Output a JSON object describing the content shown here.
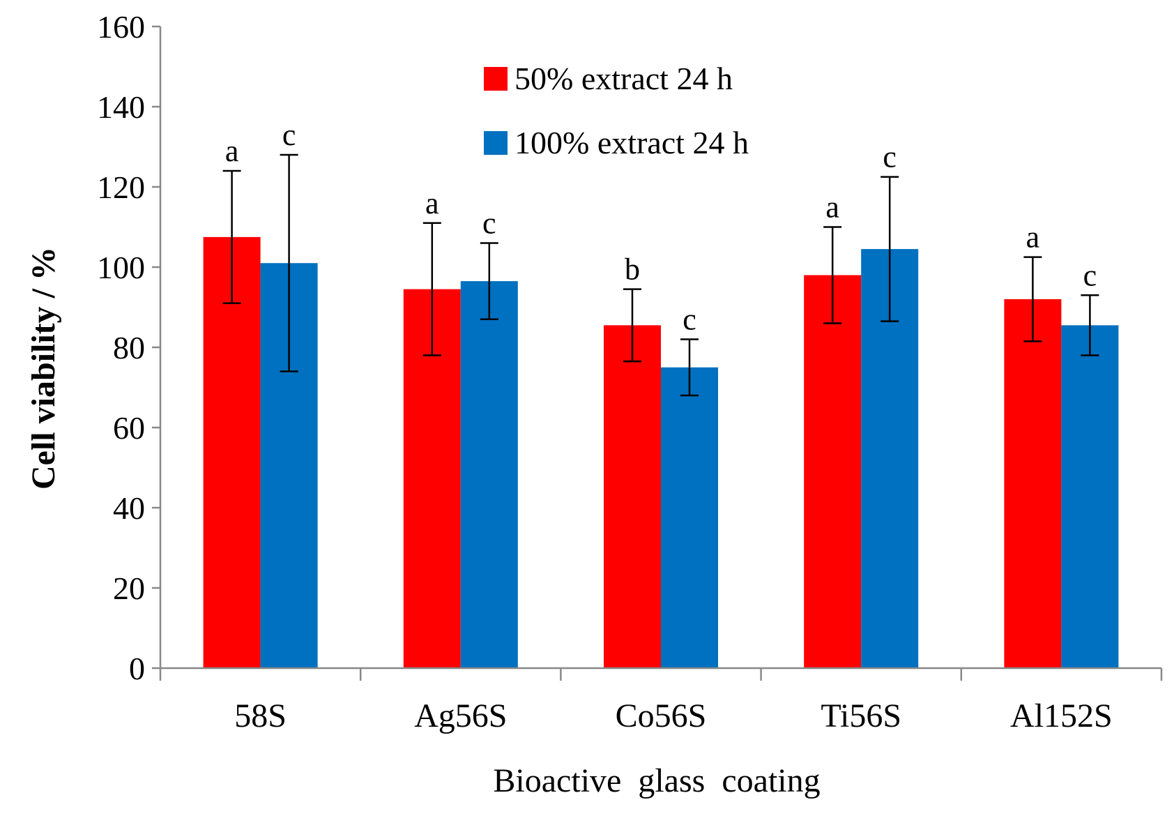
{
  "chart_data": {
    "type": "bar",
    "title": "",
    "xlabel": "Bioactive  glass  coating",
    "ylabel": "Cell viability / %",
    "ylim": [
      0,
      160
    ],
    "yticks": [
      0,
      20,
      40,
      60,
      80,
      100,
      120,
      140,
      160
    ],
    "categories": [
      "58S",
      "Ag56S",
      "Co56S",
      "Ti56S",
      "Al152S"
    ],
    "legend_position": "top-center",
    "series": [
      {
        "name": "50% extract 24 h",
        "color": "#ff0000",
        "values": [
          107.5,
          94.5,
          85.5,
          98,
          92
        ],
        "errors": [
          16.5,
          16.5,
          9,
          12,
          10.5
        ],
        "significance": [
          "a",
          "a",
          "b",
          "a",
          "a"
        ]
      },
      {
        "name": "100% extract 24 h",
        "color": "#0070c0",
        "values": [
          101,
          96.5,
          75,
          104.5,
          85.5
        ],
        "errors": [
          27,
          9.5,
          7,
          18,
          7.5
        ],
        "significance": [
          "c",
          "c",
          "c",
          "c",
          "c"
        ]
      }
    ]
  }
}
